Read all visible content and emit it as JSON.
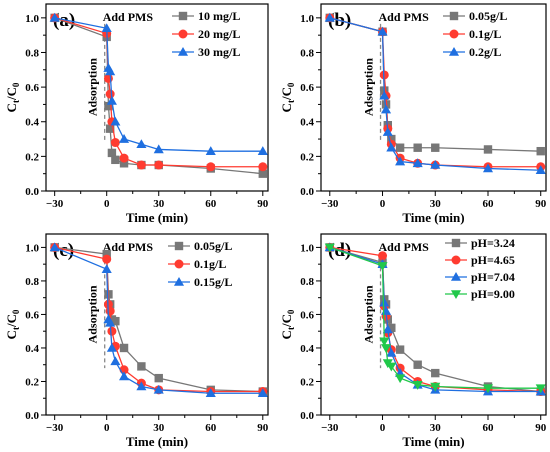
{
  "colors": {
    "gray": "#777777",
    "red": "#ff3b30",
    "blue": "#1f6fe0",
    "green": "#21c84a"
  },
  "chart_data": [
    {
      "type": "line",
      "panel_label": "(a)",
      "annotation": "Add PMS",
      "vertical_label": "Adsorption",
      "xlabel": "Time (min)",
      "ylabel": "Ct/C0",
      "xlim": [
        -35,
        93
      ],
      "ylim": [
        0,
        1.08
      ],
      "xticks": [
        -30,
        0,
        30,
        60,
        90
      ],
      "xtick_labels": [
        "−30",
        "0",
        "30",
        "60",
        "90"
      ],
      "minor_xticks": [
        -15,
        15,
        45,
        75
      ],
      "yticks": [
        0.0,
        0.2,
        0.4,
        0.6,
        0.8,
        1.0
      ],
      "ytick_labels": [
        "0.0",
        "0.2",
        "0.4",
        "0.6",
        "0.8",
        "1.0"
      ],
      "x": [
        -30,
        0,
        1,
        2,
        3,
        5,
        10,
        20,
        30,
        60,
        90
      ],
      "series": [
        {
          "name": "10 mg/L",
          "color": "#777777",
          "marker": "square",
          "values": [
            1.0,
            0.89,
            0.49,
            0.36,
            0.22,
            0.18,
            0.16,
            0.15,
            0.15,
            0.13,
            0.1
          ]
        },
        {
          "name": "20 mg/L",
          "color": "#ff3b30",
          "marker": "circle",
          "values": [
            1.0,
            0.91,
            0.65,
            0.56,
            0.4,
            0.28,
            0.19,
            0.15,
            0.15,
            0.14,
            0.14
          ]
        },
        {
          "name": "30 mg/L",
          "color": "#1f6fe0",
          "marker": "triangle",
          "values": [
            1.0,
            0.94,
            0.71,
            0.69,
            0.52,
            0.4,
            0.3,
            0.27,
            0.24,
            0.23,
            0.23
          ]
        }
      ]
    },
    {
      "type": "line",
      "panel_label": "(b)",
      "annotation": "Add PMS",
      "vertical_label": "Adsorption",
      "xlabel": "Time (min)",
      "ylabel": "Ct/C0",
      "xlim": [
        -35,
        93
      ],
      "ylim": [
        0,
        1.08
      ],
      "xticks": [
        -30,
        0,
        30,
        60,
        90
      ],
      "xtick_labels": [
        "−30",
        "0",
        "30",
        "60",
        "90"
      ],
      "minor_xticks": [
        -15,
        15,
        45,
        75
      ],
      "yticks": [
        0.0,
        0.2,
        0.4,
        0.6,
        0.8,
        1.0
      ],
      "ytick_labels": [
        "0.0",
        "0.2",
        "0.4",
        "0.6",
        "0.8",
        "1.0"
      ],
      "x": [
        -30,
        0,
        1,
        2,
        3,
        5,
        10,
        20,
        30,
        60,
        90
      ],
      "series": [
        {
          "name": "0.05g/L",
          "color": "#777777",
          "marker": "square",
          "values": [
            1.0,
            0.92,
            0.58,
            0.5,
            0.38,
            0.3,
            0.25,
            0.25,
            0.25,
            0.24,
            0.23
          ]
        },
        {
          "name": "0.1g/L",
          "color": "#ff3b30",
          "marker": "circle",
          "values": [
            1.0,
            0.92,
            0.67,
            0.55,
            0.36,
            0.27,
            0.19,
            0.16,
            0.15,
            0.14,
            0.14
          ]
        },
        {
          "name": "0.2g/L",
          "color": "#1f6fe0",
          "marker": "triangle",
          "values": [
            1.0,
            0.92,
            0.55,
            0.47,
            0.34,
            0.25,
            0.17,
            0.16,
            0.15,
            0.13,
            0.12
          ]
        }
      ]
    },
    {
      "type": "line",
      "panel_label": "(c)",
      "annotation": "Add PMS",
      "vertical_label": "Adsorption",
      "xlabel": "Time (min)",
      "ylabel": "Ct/C0",
      "xlim": [
        -35,
        93
      ],
      "ylim": [
        0,
        1.08
      ],
      "xticks": [
        -30,
        0,
        30,
        60,
        90
      ],
      "xtick_labels": [
        "−30",
        "0",
        "30",
        "60",
        "90"
      ],
      "minor_xticks": [
        -15,
        15,
        45,
        75
      ],
      "yticks": [
        0.0,
        0.2,
        0.4,
        0.6,
        0.8,
        1.0
      ],
      "ytick_labels": [
        "0.0",
        "0.2",
        "0.4",
        "0.6",
        "0.8",
        "1.0"
      ],
      "x": [
        -30,
        0,
        1,
        2,
        3,
        5,
        10,
        20,
        30,
        60,
        90
      ],
      "series": [
        {
          "name": "0.05g/L",
          "color": "#777777",
          "marker": "square",
          "values": [
            1.0,
            0.96,
            0.72,
            0.66,
            0.57,
            0.56,
            0.4,
            0.29,
            0.22,
            0.15,
            0.14
          ]
        },
        {
          "name": "0.1g/L",
          "color": "#ff3b30",
          "marker": "circle",
          "values": [
            1.0,
            0.93,
            0.66,
            0.62,
            0.5,
            0.41,
            0.27,
            0.19,
            0.15,
            0.14,
            0.14
          ]
        },
        {
          "name": "0.15g/L",
          "color": "#1f6fe0",
          "marker": "triangle",
          "values": [
            1.0,
            0.87,
            0.57,
            0.55,
            0.4,
            0.32,
            0.23,
            0.17,
            0.15,
            0.13,
            0.13
          ]
        }
      ]
    },
    {
      "type": "line",
      "panel_label": "(d)",
      "annotation": "Add PMS",
      "vertical_label": "Adsorption",
      "xlabel": "Time (min)",
      "ylabel": "Ct/C0",
      "xlim": [
        -35,
        93
      ],
      "ylim": [
        0,
        1.08
      ],
      "xticks": [
        -30,
        0,
        30,
        60,
        90
      ],
      "xtick_labels": [
        "−30",
        "0",
        "30",
        "60",
        "90"
      ],
      "minor_xticks": [
        -15,
        15,
        45,
        75
      ],
      "yticks": [
        0.0,
        0.2,
        0.4,
        0.6,
        0.8,
        1.0
      ],
      "ytick_labels": [
        "0.0",
        "0.2",
        "0.4",
        "0.6",
        "0.8",
        "1.0"
      ],
      "x": [
        -30,
        0,
        1,
        2,
        3,
        5,
        10,
        20,
        30,
        60,
        90
      ],
      "series": [
        {
          "name": "pH=3.24",
          "color": "#777777",
          "marker": "square",
          "values": [
            1.0,
            0.91,
            0.69,
            0.66,
            0.57,
            0.52,
            0.39,
            0.3,
            0.25,
            0.17,
            0.14
          ]
        },
        {
          "name": "pH=4.65",
          "color": "#ff3b30",
          "marker": "circle",
          "values": [
            1.0,
            0.95,
            0.65,
            0.59,
            0.49,
            0.39,
            0.28,
            0.2,
            0.17,
            0.15,
            0.14
          ]
        },
        {
          "name": "pH=7.04",
          "color": "#1f6fe0",
          "marker": "triangle",
          "values": [
            1.0,
            0.9,
            0.67,
            0.62,
            0.51,
            0.37,
            0.25,
            0.18,
            0.15,
            0.14,
            0.14
          ]
        },
        {
          "name": "pH=9.00",
          "color": "#21c84a",
          "marker": "triangle-down",
          "values": [
            1.0,
            0.89,
            0.44,
            0.4,
            0.31,
            0.29,
            0.22,
            0.18,
            0.17,
            0.16,
            0.16
          ]
        }
      ]
    }
  ]
}
